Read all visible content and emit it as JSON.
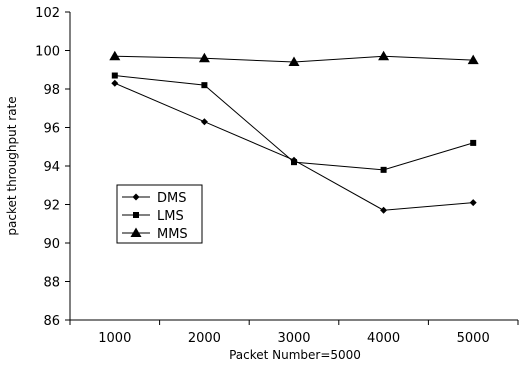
{
  "chart_data": {
    "type": "line",
    "xlabel": "Packet Number=5000",
    "ylabel": "packet throughput rate",
    "categories": [
      "1000",
      "2000",
      "3000",
      "4000",
      "5000"
    ],
    "ylim": [
      86,
      102
    ],
    "yticks": [
      "86",
      "88",
      "90",
      "92",
      "94",
      "96",
      "98",
      "100",
      "102"
    ],
    "grid": false,
    "legend_position": "left-middle",
    "series": [
      {
        "name": "DMS",
        "marker": "diamond",
        "values": [
          98.3,
          96.3,
          94.3,
          91.7,
          92.1
        ]
      },
      {
        "name": "LMS",
        "marker": "square",
        "values": [
          98.7,
          98.2,
          94.2,
          93.8,
          95.2
        ]
      },
      {
        "name": "MMS",
        "marker": "triangle",
        "values": [
          99.7,
          99.6,
          99.4,
          99.7,
          99.5
        ]
      }
    ]
  }
}
